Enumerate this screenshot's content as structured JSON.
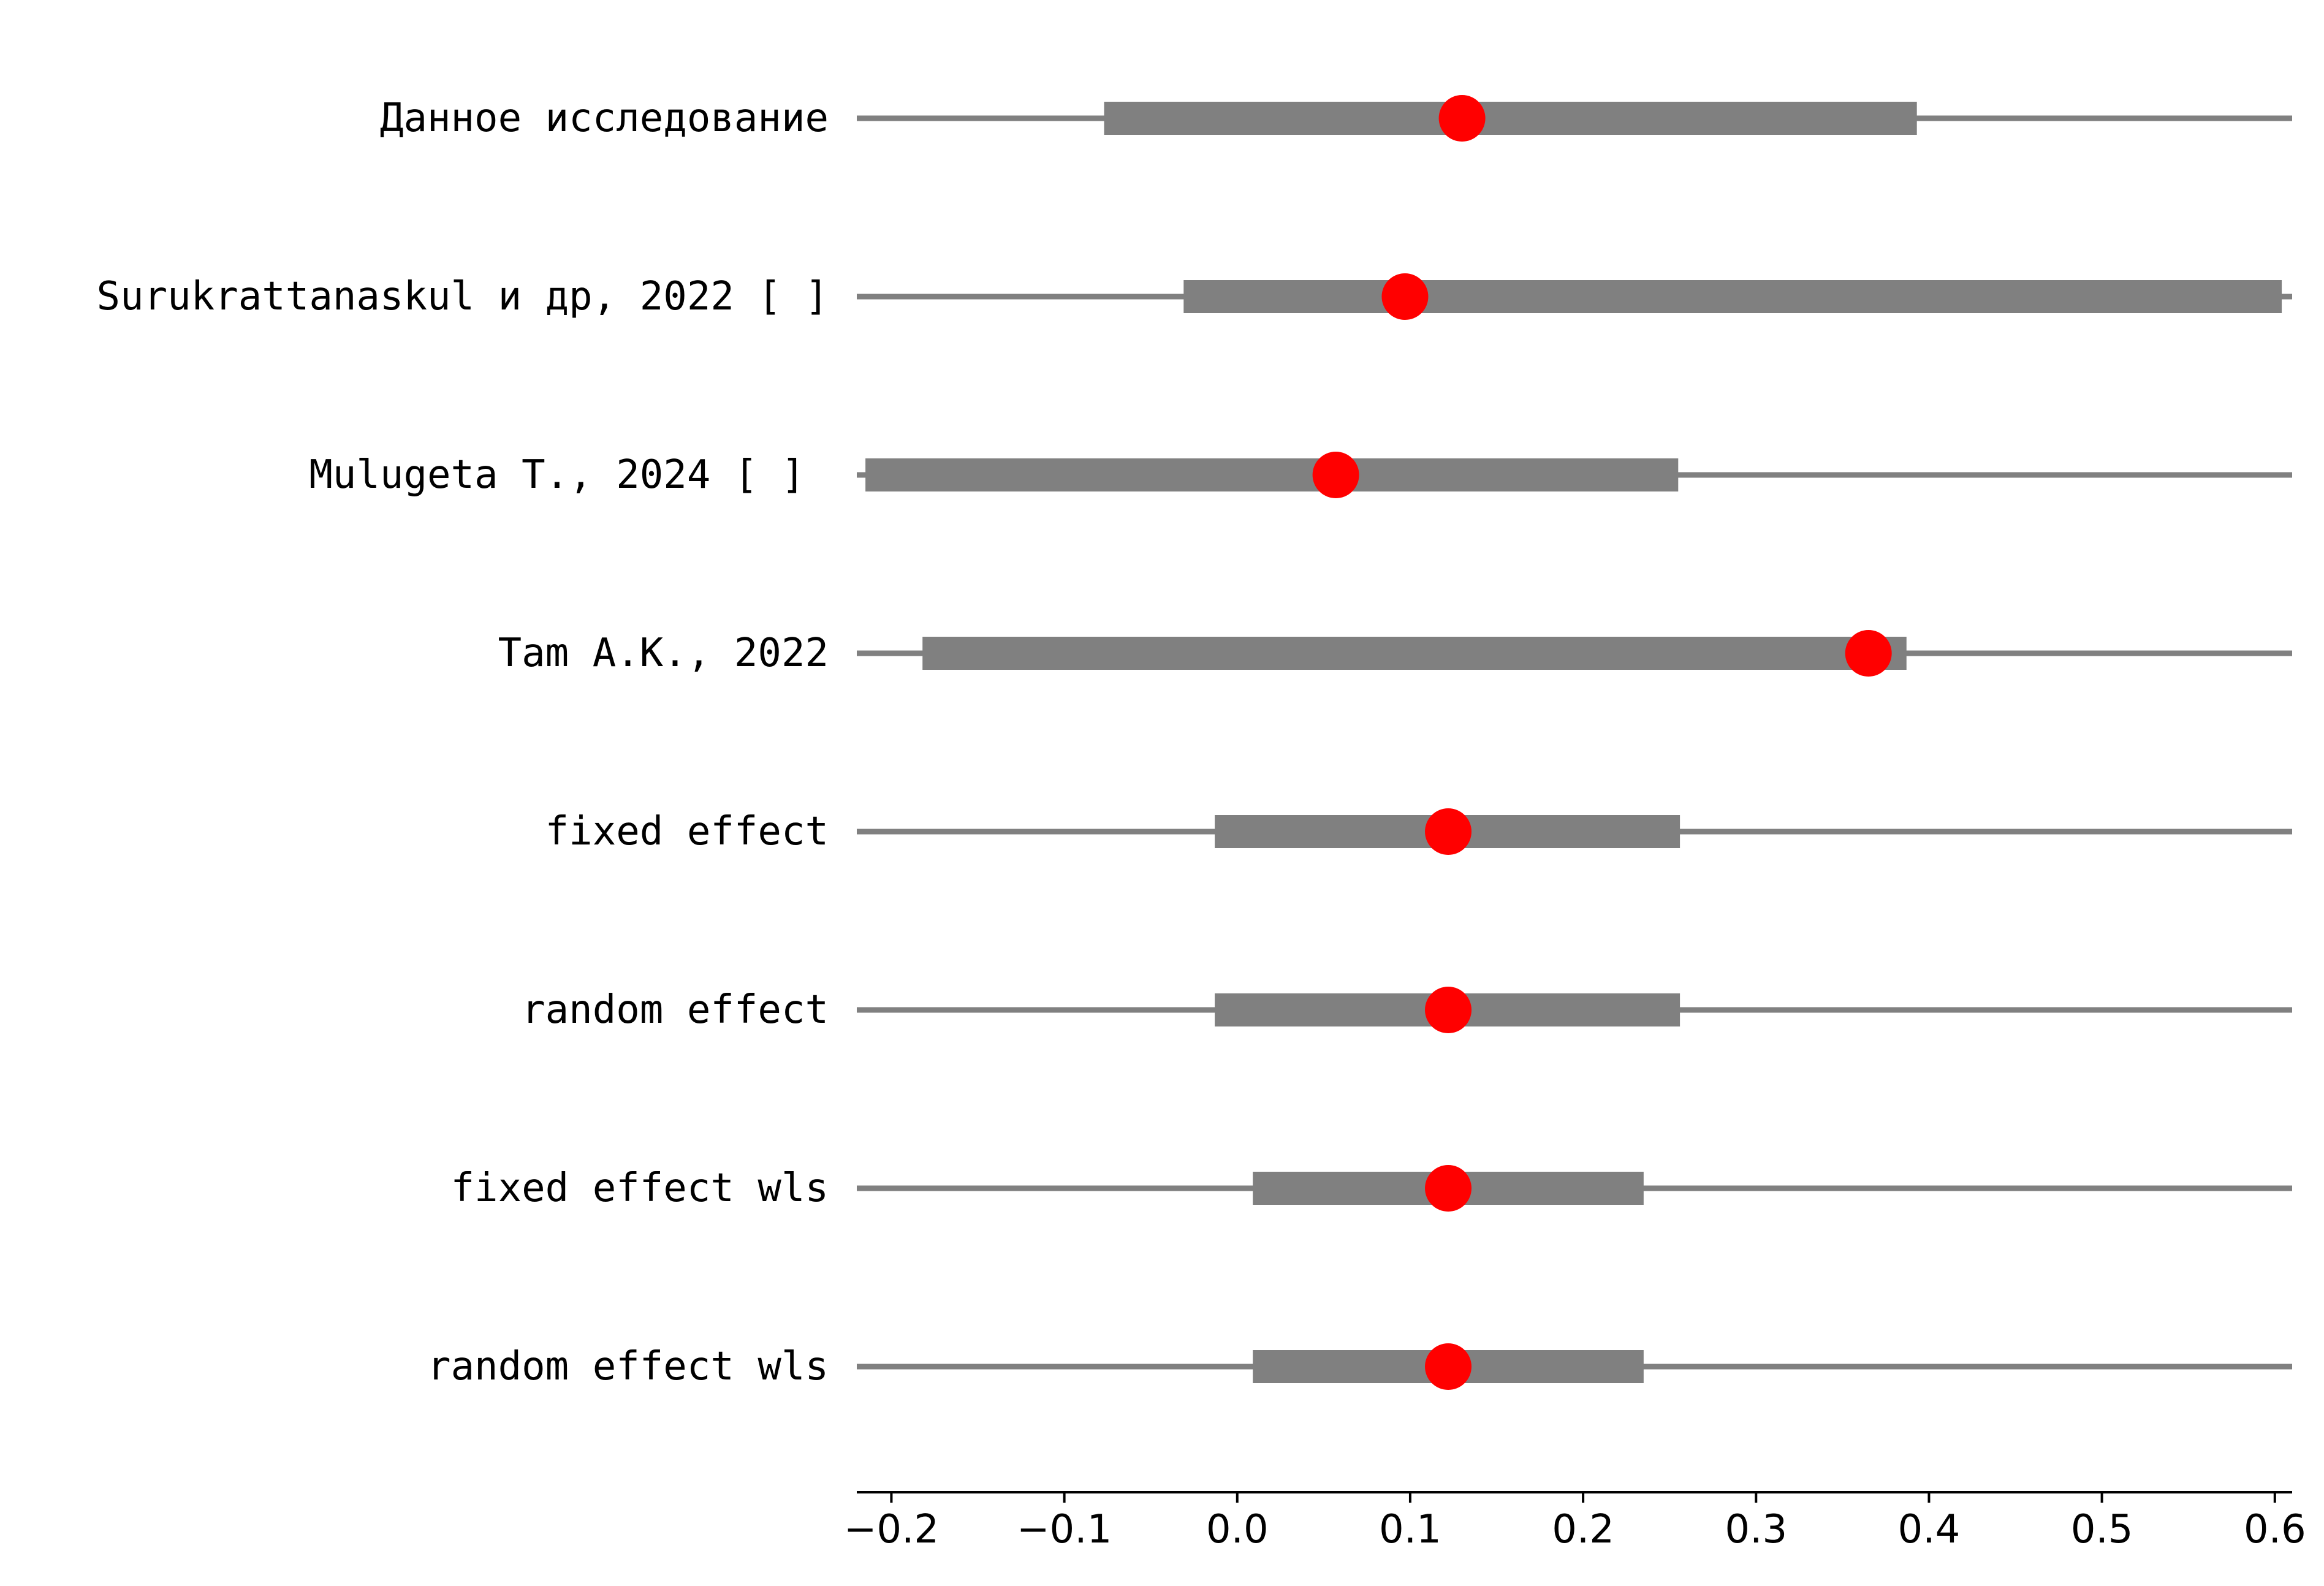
{
  "chart_data": {
    "type": "forest",
    "title": "",
    "xlabel": "",
    "ylabel": "",
    "xlim": [
      -0.22,
      0.61
    ],
    "xticks": [
      -0.2,
      -0.1,
      0.0,
      0.1,
      0.2,
      0.3,
      0.4,
      0.5,
      0.6
    ],
    "xtick_labels": [
      "−0.2",
      "−0.1",
      "0.0",
      "0.1",
      "0.2",
      "0.3",
      "0.4",
      "0.5",
      "0.6"
    ],
    "grid": false,
    "legend": "none",
    "rows": [
      {
        "label": "Данное исследование",
        "estimate": 0.13,
        "ci_inner": [
          -0.077,
          0.393
        ],
        "ci_outer": [
          -0.22,
          0.61
        ]
      },
      {
        "label": "Surukrattanaskul и др, 2022 [ ]",
        "estimate": 0.097,
        "ci_inner": [
          -0.031,
          0.604
        ],
        "ci_outer": [
          -0.22,
          0.61
        ]
      },
      {
        "label": "Mulugeta T., 2024 [ ] ",
        "estimate": 0.057,
        "ci_inner": [
          -0.215,
          0.255
        ],
        "ci_outer": [
          -0.22,
          0.61
        ]
      },
      {
        "label": "Tam A.K., 2022",
        "estimate": 0.365,
        "ci_inner": [
          -0.182,
          0.387
        ],
        "ci_outer": [
          -0.22,
          0.61
        ]
      },
      {
        "label": "fixed effect",
        "estimate": 0.122,
        "ci_inner": [
          -0.013,
          0.256
        ],
        "ci_outer": [
          -0.22,
          0.61
        ]
      },
      {
        "label": "random effect",
        "estimate": 0.122,
        "ci_inner": [
          -0.013,
          0.256
        ],
        "ci_outer": [
          -0.22,
          0.61
        ]
      },
      {
        "label": "fixed effect wls",
        "estimate": 0.122,
        "ci_inner": [
          0.009,
          0.235
        ],
        "ci_outer": [
          -0.22,
          0.61
        ]
      },
      {
        "label": "random effect wls",
        "estimate": 0.122,
        "ci_inner": [
          0.009,
          0.235
        ],
        "ci_outer": [
          -0.22,
          0.61
        ]
      }
    ],
    "colors": {
      "interval": "#808080",
      "point": "#ff0000",
      "axis": "#000000"
    }
  }
}
